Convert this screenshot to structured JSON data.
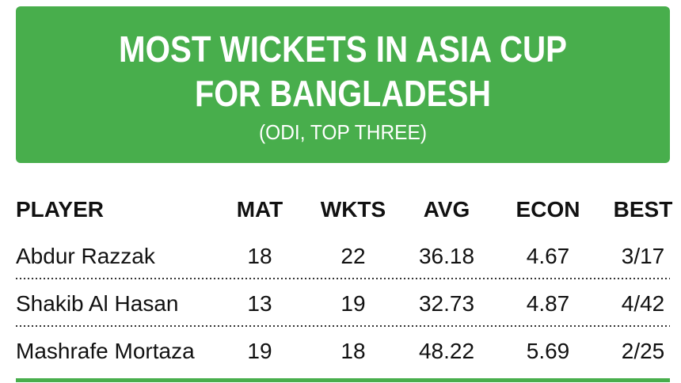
{
  "header": {
    "title_lines": [
      "MOST WICKETS IN ASIA CUP",
      "FOR BANGLADESH"
    ],
    "subtitle": "(ODI, TOP THREE)"
  },
  "table": {
    "columns": [
      "PLAYER",
      "MAT",
      "WKTS",
      "AVG",
      "ECON",
      "BEST"
    ],
    "rows": [
      [
        "Abdur Razzak",
        18,
        22,
        36.18,
        4.67,
        "3/17"
      ],
      [
        "Shakib Al Hasan",
        13,
        19,
        32.73,
        4.87,
        "4/42"
      ],
      [
        "Mashrafe Mortaza",
        19,
        18,
        48.22,
        5.69,
        "2/25"
      ]
    ]
  }
}
